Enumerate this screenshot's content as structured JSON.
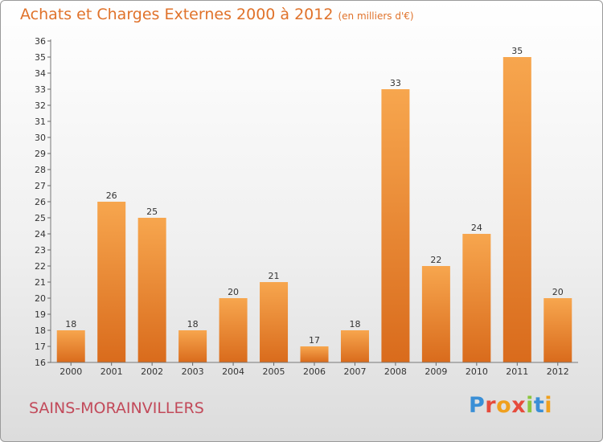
{
  "title": "Achats et Charges Externes 2000 à 2012",
  "unit_note": "(en milliers d'€)",
  "place": "SAINS-MORAINVILLERS",
  "logo": {
    "letters": [
      "P",
      "r",
      "o",
      "x",
      "i",
      "t",
      "i"
    ],
    "colors": [
      "#3a8fd6",
      "#e64b3c",
      "#f0a01e",
      "#e64b3c",
      "#8cc63f",
      "#3a8fd6",
      "#f0a01e"
    ]
  },
  "colors": {
    "title": "#e0722a",
    "place": "#c24a5a",
    "bar_light": "#f7a64e",
    "bar_dark": "#d96b1c"
  },
  "chart_data": {
    "type": "bar",
    "title": "Achats et Charges Externes 2000 à 2012",
    "categories": [
      "2000",
      "2001",
      "2002",
      "2003",
      "2004",
      "2005",
      "2006",
      "2007",
      "2008",
      "2009",
      "2010",
      "2011",
      "2012"
    ],
    "values": [
      18,
      26,
      25,
      18,
      20,
      21,
      17,
      18,
      33,
      22,
      24,
      35,
      20
    ],
    "ylim": [
      16,
      36
    ],
    "yticks": [
      16,
      17,
      18,
      19,
      20,
      21,
      22,
      23,
      24,
      25,
      26,
      27,
      28,
      29,
      30,
      31,
      32,
      33,
      34,
      35,
      36
    ],
    "xlabel": "",
    "ylabel": "",
    "grid": false,
    "data_labels": true
  }
}
